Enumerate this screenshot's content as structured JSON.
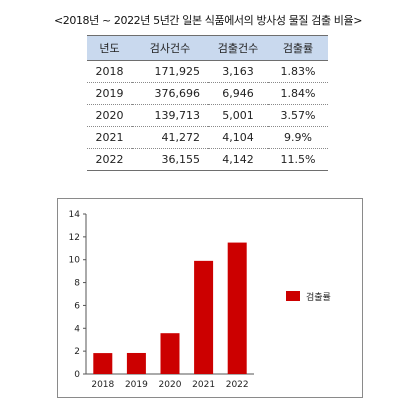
{
  "title": "<2018년 ~ 2022년 5년간 일본 식품에서의 방사성 물질 검출 비율>",
  "table": {
    "headers": [
      "년도",
      "검사건수",
      "검출건수",
      "검출률"
    ],
    "rows": [
      [
        "2018",
        "171,925",
        "3,163",
        "1.83%"
      ],
      [
        "2019",
        "376,696",
        "6,946",
        "1.84%"
      ],
      [
        "2020",
        "139,713",
        "5,001",
        "3.57%"
      ],
      [
        "2021",
        "41,272",
        "4,104",
        "9.9%"
      ],
      [
        "2022",
        "36,155",
        "4,142",
        "11.5%"
      ]
    ]
  },
  "chart_data": {
    "type": "bar",
    "categories": [
      "2018",
      "2019",
      "2020",
      "2021",
      "2022"
    ],
    "series": [
      {
        "name": "검출률",
        "values": [
          1.83,
          1.84,
          3.57,
          9.9,
          11.5
        ],
        "color": "#cc0000"
      }
    ],
    "ylim": [
      0,
      14
    ],
    "yticks": [
      0,
      2,
      4,
      6,
      8,
      10,
      12,
      14
    ],
    "legend_position": "right",
    "grid": false
  }
}
